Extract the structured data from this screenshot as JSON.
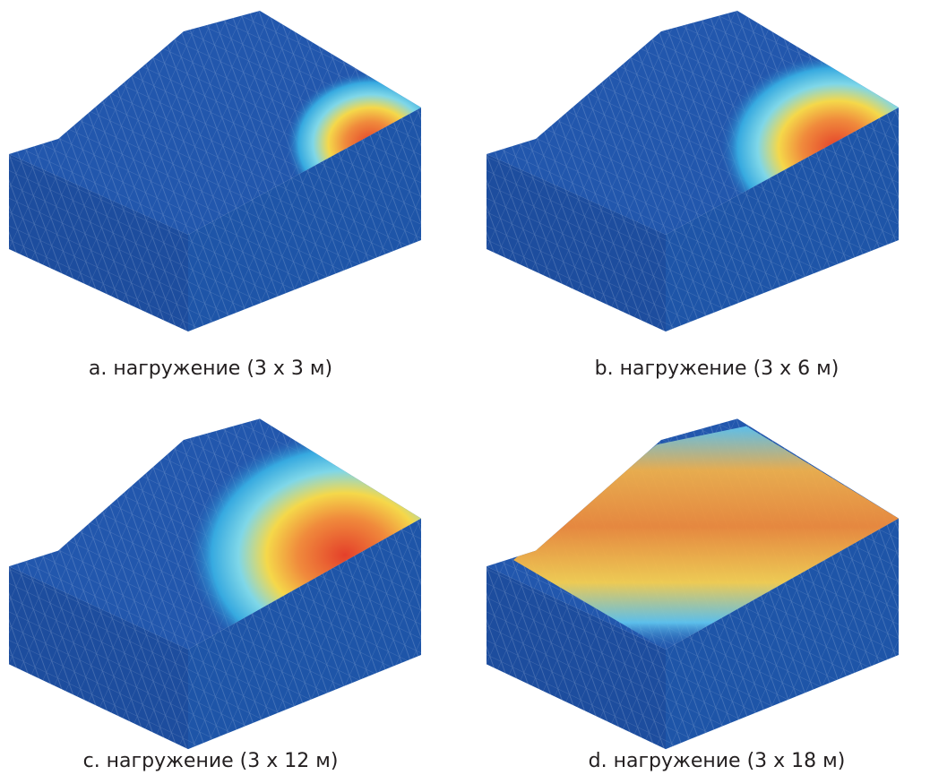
{
  "figure": {
    "panels": [
      {
        "caption": "a. нагружение (3 x 3 м)"
      },
      {
        "caption": "b. нагружение (3 x 6 м)"
      },
      {
        "caption": "c. нагружение (3 x 12 м)"
      },
      {
        "caption": "d. нагружение (3 x 18 м)"
      }
    ]
  }
}
